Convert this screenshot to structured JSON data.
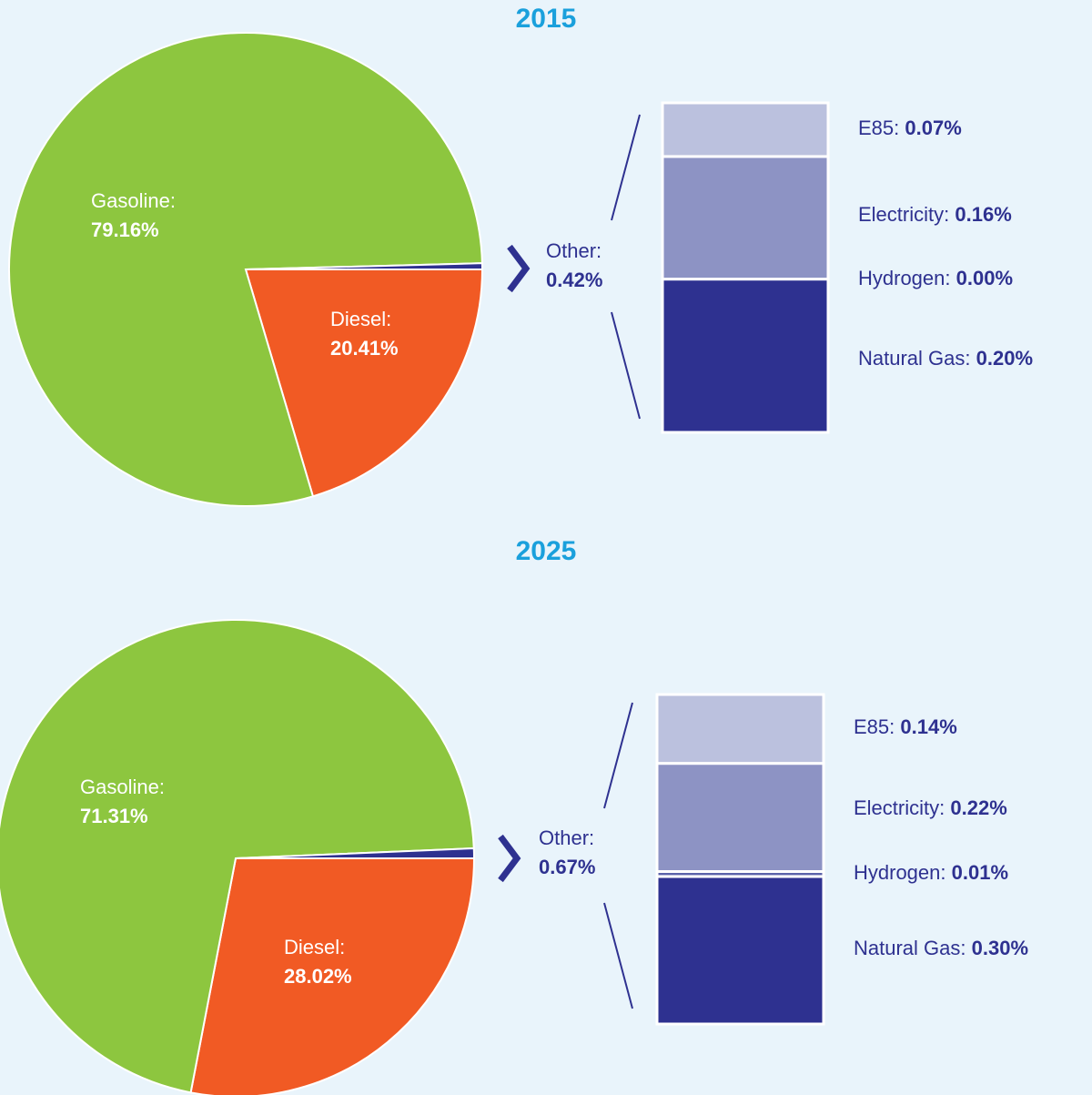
{
  "chart_data": [
    {
      "type": "pie",
      "title": "2015",
      "categories": [
        "Gasoline:",
        "Diesel:",
        "Other:"
      ],
      "values": [
        79.16,
        20.41,
        0.42
      ],
      "value_labels": [
        "79.16%",
        "20.41%",
        "0.42%"
      ],
      "colors": [
        "#8dc63f",
        "#f15a24",
        "#2e3190"
      ],
      "breakdown": {
        "categories": [
          "E85:",
          "Electricity:",
          "Hydrogen:",
          "Natural Gas:"
        ],
        "values": [
          0.07,
          0.16,
          0.0,
          0.2
        ],
        "value_labels": [
          "0.07%",
          "0.16%",
          "0.00%",
          "0.20%"
        ],
        "colors": [
          "#bbc1de",
          "#8d93c4",
          "#5b62aa",
          "#2e3190"
        ]
      }
    },
    {
      "type": "pie",
      "title": "2025",
      "categories": [
        "Gasoline:",
        "Diesel:",
        "Other:"
      ],
      "values": [
        71.31,
        28.02,
        0.67
      ],
      "value_labels": [
        "71.31%",
        "28.02%",
        "0.67%"
      ],
      "colors": [
        "#8dc63f",
        "#f15a24",
        "#2e3190"
      ],
      "breakdown": {
        "categories": [
          "E85:",
          "Electricity:",
          "Hydrogen:",
          "Natural Gas:"
        ],
        "values": [
          0.14,
          0.22,
          0.01,
          0.3
        ],
        "value_labels": [
          "0.14%",
          "0.22%",
          "0.01%",
          "0.30%"
        ],
        "colors": [
          "#bbc1de",
          "#8d93c4",
          "#5b62aa",
          "#2e3190"
        ]
      }
    }
  ]
}
